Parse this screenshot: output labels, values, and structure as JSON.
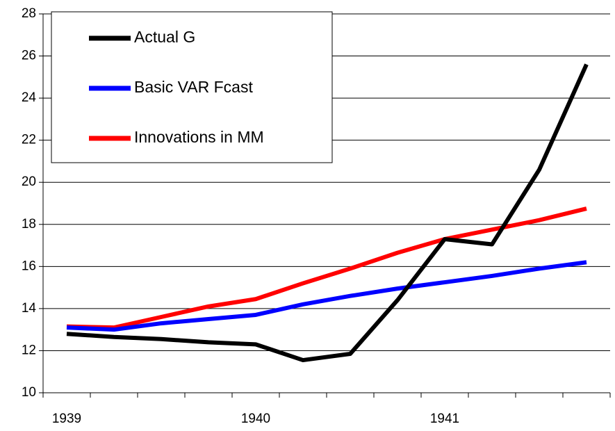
{
  "chart_data": {
    "type": "line",
    "categories": [
      "1939",
      null,
      null,
      null,
      "1940",
      null,
      null,
      null,
      "1941",
      null,
      null,
      null
    ],
    "series": [
      {
        "name": "Actual G",
        "color": "#000000",
        "values": [
          12.8,
          12.65,
          12.55,
          12.4,
          12.3,
          11.55,
          11.85,
          14.4,
          17.3,
          17.05,
          20.6,
          25.6
        ]
      },
      {
        "name": "Basic VAR Fcast",
        "color": "#0000ff",
        "values": [
          13.1,
          13.0,
          13.3,
          13.5,
          13.7,
          14.2,
          14.6,
          14.95,
          15.25,
          15.55,
          15.9,
          16.2
        ]
      },
      {
        "name": "Innovations in MM",
        "color": "#ff0000",
        "values": [
          13.15,
          13.1,
          13.6,
          14.1,
          14.45,
          15.2,
          15.9,
          16.65,
          17.3,
          17.75,
          18.2,
          18.75
        ]
      }
    ],
    "ylim": [
      10,
      28
    ],
    "yticks": [
      10,
      12,
      14,
      16,
      18,
      20,
      22,
      24,
      26,
      28
    ],
    "grid": true,
    "legend": "upper left"
  }
}
